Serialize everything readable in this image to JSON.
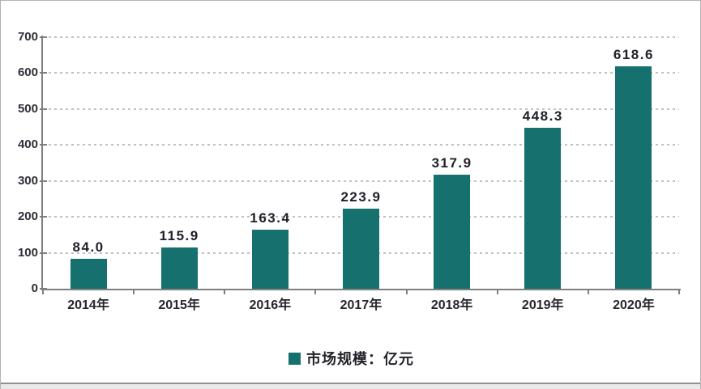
{
  "chart_data": {
    "type": "bar",
    "categories": [
      "2014年",
      "2015年",
      "2016年",
      "2017年",
      "2018年",
      "2019年",
      "2020年"
    ],
    "values": [
      84.0,
      115.9,
      163.4,
      223.9,
      317.9,
      448.3,
      618.6
    ],
    "value_labels": [
      "84.0",
      "115.9",
      "163.4",
      "223.9",
      "317.9",
      "448.3",
      "618.6"
    ],
    "title": "",
    "xlabel": "",
    "ylabel": "",
    "ylim": [
      0,
      700
    ],
    "ytick_step": 100,
    "yticks": [
      0,
      100,
      200,
      300,
      400,
      500,
      600,
      700
    ],
    "grid": "horizontal-dashed",
    "legend": {
      "label": "市场规模：亿元",
      "position": "bottom",
      "swatch_color": "#16716e"
    },
    "bar_color": "#16716e"
  },
  "colors": {
    "bar": "#16716e",
    "axis": "#7f7f7f",
    "gridline": "#c1c1c1",
    "text": "#26262e",
    "frame_border": "#b3b3b3"
  }
}
